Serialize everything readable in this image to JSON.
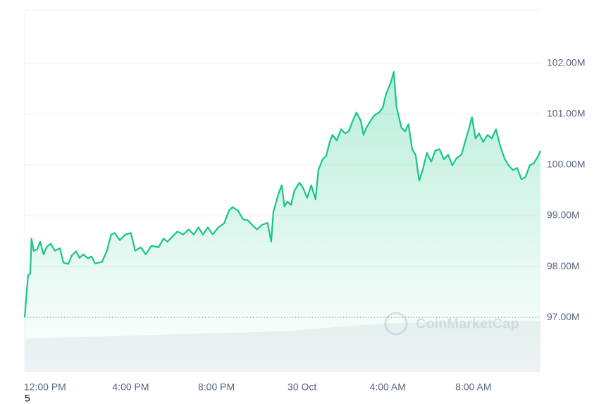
{
  "chart_data": {
    "type": "line",
    "color": "#16c784",
    "x": [
      -0.95,
      -0.79,
      -0.69,
      -0.63,
      -0.53,
      -0.36,
      -0.23,
      -0.07,
      0.07,
      0.26,
      0.46,
      0.69,
      0.86,
      1.09,
      1.25,
      1.45,
      1.61,
      1.78,
      2.01,
      2.17,
      2.34,
      2.66,
      2.89,
      3.09,
      3.26,
      3.49,
      3.75,
      4.01,
      4.21,
      4.47,
      4.7,
      4.97,
      5.3,
      5.53,
      5.72,
      5.95,
      6.18,
      6.45,
      6.71,
      6.94,
      7.17,
      7.37,
      7.6,
      7.83,
      8.09,
      8.36,
      8.59,
      8.75,
      9.01,
      9.24,
      9.47,
      9.67,
      9.9,
      10.13,
      10.39,
      10.56,
      10.66,
      10.89,
      11.05,
      11.18,
      11.32,
      11.48,
      11.64,
      11.88,
      12.04,
      12.24,
      12.43,
      12.63,
      12.76,
      12.96,
      13.13,
      13.29,
      13.42,
      13.62,
      13.82,
      14.01,
      14.18,
      14.34,
      14.54,
      14.74,
      14.87,
      15.0,
      15.2,
      15.39,
      15.59,
      15.76,
      15.92,
      16.15,
      16.28,
      16.41,
      16.64,
      16.81,
      16.97,
      17.14,
      17.3,
      17.47,
      17.63,
      17.83,
      18.03,
      18.22,
      18.42,
      18.62,
      18.82,
      19.01,
      19.21,
      19.44,
      19.61,
      19.8,
      19.93,
      20.1,
      20.26,
      20.46,
      20.66,
      20.86,
      21.05,
      21.25,
      21.45,
      21.64,
      21.84,
      22.04,
      22.24,
      22.43,
      22.63,
      22.83,
      23.03,
      23.13
    ],
    "values": [
      97.0,
      97.83,
      97.86,
      98.55,
      98.31,
      98.34,
      98.49,
      98.24,
      98.38,
      98.45,
      98.31,
      98.36,
      98.08,
      98.05,
      98.22,
      98.3,
      98.17,
      98.24,
      98.16,
      98.2,
      98.06,
      98.09,
      98.31,
      98.63,
      98.66,
      98.52,
      98.63,
      98.66,
      98.31,
      98.38,
      98.24,
      98.41,
      98.38,
      98.55,
      98.49,
      98.59,
      98.69,
      98.63,
      98.73,
      98.63,
      98.77,
      98.63,
      98.77,
      98.63,
      98.77,
      98.85,
      99.1,
      99.17,
      99.1,
      98.93,
      98.91,
      98.82,
      98.73,
      98.82,
      98.86,
      98.49,
      99.07,
      99.42,
      99.6,
      99.18,
      99.28,
      99.21,
      99.49,
      99.65,
      99.55,
      99.35,
      99.6,
      99.32,
      99.9,
      100.11,
      100.18,
      100.45,
      100.59,
      100.48,
      100.7,
      100.62,
      100.66,
      100.84,
      101.03,
      100.87,
      100.59,
      100.73,
      100.87,
      100.98,
      101.03,
      101.12,
      101.39,
      101.63,
      101.83,
      101.14,
      100.73,
      100.66,
      100.8,
      100.31,
      100.2,
      99.69,
      99.9,
      100.24,
      100.06,
      100.28,
      100.31,
      100.11,
      100.2,
      99.99,
      100.13,
      100.2,
      100.45,
      100.73,
      100.94,
      100.52,
      100.62,
      100.45,
      100.59,
      100.52,
      100.7,
      100.37,
      100.13,
      99.99,
      99.9,
      99.94,
      99.72,
      99.76,
      99.99,
      100.04,
      100.18,
      100.28
    ],
    "baseline": 97,
    "xlim": [
      -0.95,
      23.13
    ],
    "xticks": [
      {
        "value": 0,
        "label": "12:00 PM"
      },
      {
        "value": 4,
        "label": "4:00 PM"
      },
      {
        "value": 8,
        "label": "8:00 PM"
      },
      {
        "value": 12,
        "label": "30 Oct"
      },
      {
        "value": 16,
        "label": "4:00 AM"
      },
      {
        "value": 20,
        "label": "8:00 AM"
      }
    ],
    "ylim": [
      95.92,
      103.05
    ],
    "yticks": [
      {
        "value": 97,
        "label": "97.00M"
      },
      {
        "value": 98,
        "label": "98.00M"
      },
      {
        "value": 99,
        "label": "99.00M"
      },
      {
        "value": 100,
        "label": "100.00M"
      },
      {
        "value": 101,
        "label": "101.00M"
      },
      {
        "value": 102,
        "label": "102.00M"
      }
    ],
    "grid": true,
    "watermark": "CoinMarketCap",
    "footnote": "5"
  }
}
